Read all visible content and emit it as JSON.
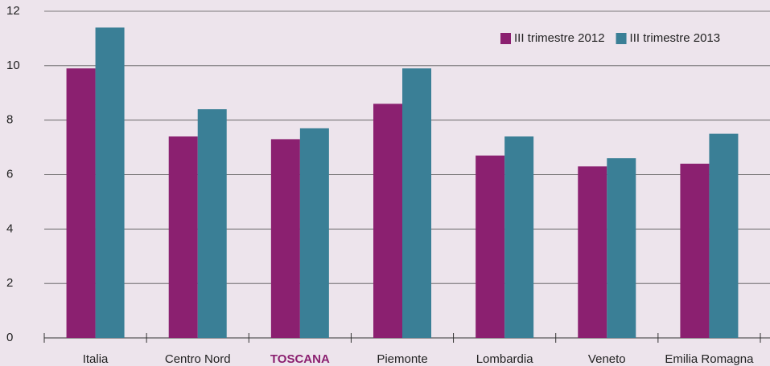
{
  "chart_data": {
    "type": "bar",
    "categories": [
      "Italia",
      "Centro Nord",
      "TOSCANA",
      "Piemonte",
      "Lombardia",
      "Veneto",
      "Emilia Romagna"
    ],
    "highlight": 2,
    "highlight_color": "#8b2070",
    "series": [
      {
        "name": "III trimestre 2012",
        "color": "#8b2070",
        "values": [
          9.9,
          7.4,
          7.3,
          8.6,
          6.7,
          6.3,
          6.4
        ]
      },
      {
        "name": "III trimestre 2013",
        "color": "#3a7f96",
        "values": [
          11.4,
          8.4,
          7.7,
          9.9,
          7.4,
          6.6,
          7.5
        ]
      }
    ],
    "ylim": [
      0,
      12
    ],
    "yticks": [
      0,
      2,
      4,
      6,
      8,
      10,
      12
    ],
    "grid": true,
    "legend": "top-right"
  }
}
